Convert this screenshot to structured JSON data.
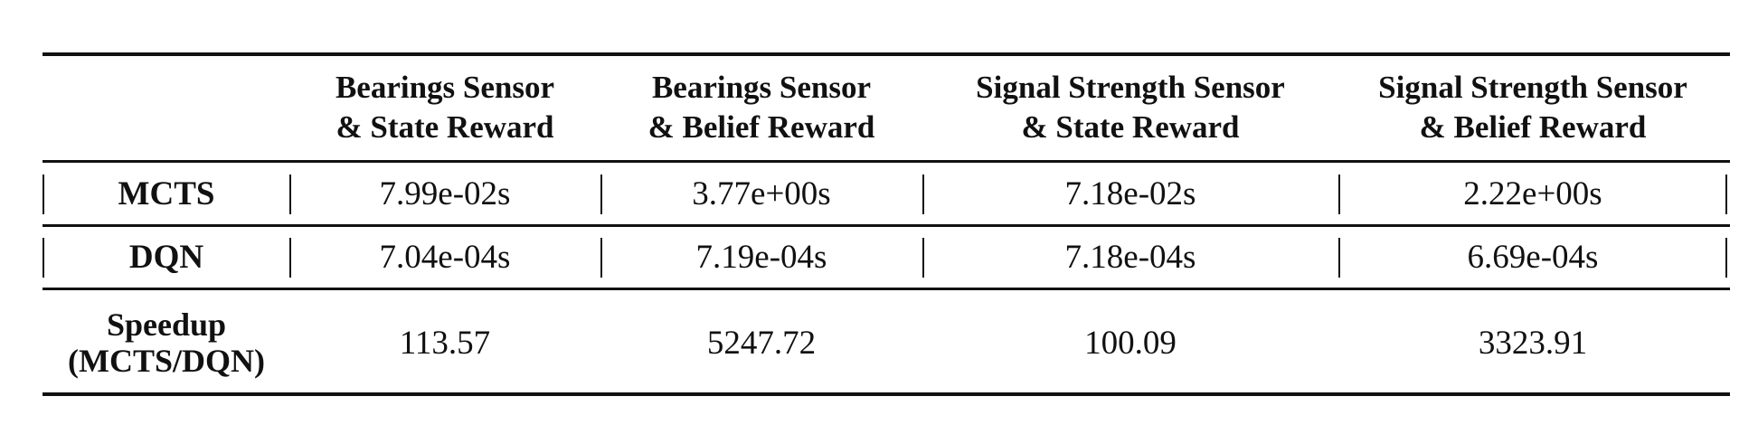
{
  "table": {
    "header": [
      {
        "line1": "",
        "line2": ""
      },
      {
        "line1": "Bearings Sensor",
        "line2": "& State Reward"
      },
      {
        "line1": "Bearings Sensor",
        "line2": "& Belief Reward"
      },
      {
        "line1": "Signal Strength Sensor",
        "line2": "& State Reward"
      },
      {
        "line1": "Signal Strength Sensor",
        "line2": "& Belief Reward"
      }
    ],
    "rows": [
      {
        "label": "MCTS",
        "values": [
          "7.99e-02s",
          "3.77e+00s",
          "7.18e-02s",
          "2.22e+00s"
        ]
      },
      {
        "label": "DQN",
        "values": [
          "7.04e-04s",
          "7.19e-04s",
          "7.18e-04s",
          "6.69e-04s"
        ]
      }
    ],
    "speedup": {
      "label_line1": "Speedup",
      "label_line2": "(MCTS/DQN)",
      "values": [
        "113.57",
        "5247.72",
        "100.09",
        "3323.91"
      ]
    }
  }
}
